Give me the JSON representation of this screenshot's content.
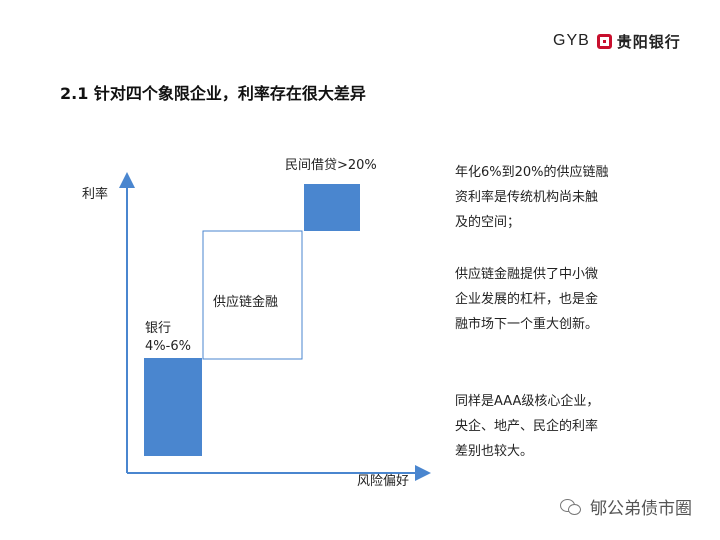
{
  "brand": {
    "abbr": "GYB",
    "name": "贵阳银行",
    "color": "#c8102e"
  },
  "title": "2.1 针对四个象限企业，利率存在很大差异",
  "diagram": {
    "y_axis_label": "利率",
    "x_axis_label": "风险偏好",
    "boxes": [
      {
        "id": "bank",
        "label_line1": "银行",
        "label_line2": "4%-6%",
        "fill": "#4a86cf"
      },
      {
        "id": "supply_chain",
        "label": "供应链金融",
        "fill": "#ffffff",
        "stroke": "#4a86cf"
      },
      {
        "id": "private_lending",
        "label": "民间借贷>20%",
        "fill": "#4a86cf"
      }
    ],
    "axis_color": "#4a86cf"
  },
  "paragraphs": [
    "年化6%到20%的供应链融资利率是传统机构尚未触及的空间；",
    "供应链金融提供了中小微企业发展的杠杆，也是金融市场下一个重大创新。",
    "同样是AAA级核心企业，央企、地产、民企的利率差别也较大。"
  ],
  "watermark": "郇公弟债市圈"
}
